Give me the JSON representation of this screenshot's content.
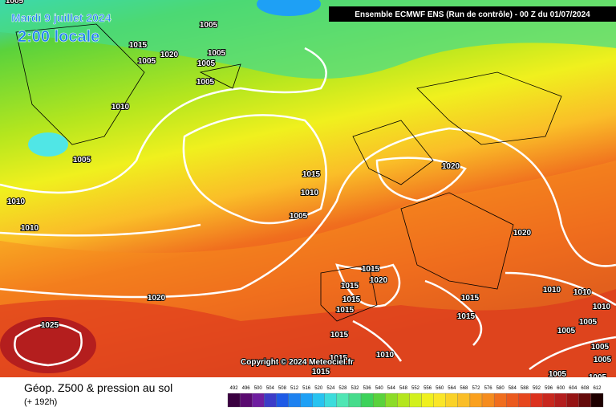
{
  "header": {
    "date": "Mardi 9 juillet 2024",
    "time": "2:00 locale",
    "model": "Ensemble ECMWF ENS  (Run de contrôle)  - 00 Z du 01/07/2024"
  },
  "copyright": "Copyright © 2024 Meteociel.fr",
  "footer": {
    "title": "Géop. Z500 & pression au sol",
    "lead": "(+ 192h)"
  },
  "isobar_labels": [
    "1005",
    "1005",
    "1015",
    "1020",
    "1005",
    "1005",
    "1005",
    "1005",
    "1010",
    "1005",
    "1015",
    "1010",
    "1005",
    "1010",
    "1010",
    "1020",
    "1020",
    "1015",
    "1020",
    "1015",
    "1015",
    "1015",
    "1020",
    "1025",
    "1015",
    "1015",
    "1015",
    "1010",
    "1010",
    "1010",
    "1005",
    "1005",
    "1005",
    "1005",
    "1010",
    "1015",
    "1015",
    "1005",
    "1005"
  ],
  "scale": {
    "labels": [
      492,
      496,
      500,
      504,
      508,
      512,
      516,
      520,
      524,
      528,
      532,
      536,
      540,
      544,
      548,
      552,
      556,
      560,
      564,
      568,
      572,
      576,
      580,
      584,
      588,
      592,
      596,
      600,
      604,
      608,
      612
    ],
    "colors": [
      "#3a0040",
      "#5a0a70",
      "#6f1ea0",
      "#3c3cc8",
      "#1e5ae6",
      "#1e82f0",
      "#1ea0f5",
      "#28c3f0",
      "#3cdcdc",
      "#50e6b4",
      "#46dc8c",
      "#3cd25a",
      "#5ad23c",
      "#8cdc28",
      "#b4e61e",
      "#d2f01e",
      "#f0f01e",
      "#fae628",
      "#fad228",
      "#fabe28",
      "#faa01e",
      "#f58c1e",
      "#f06e1e",
      "#eb5a1e",
      "#e6461e",
      "#dc321e",
      "#c8281e",
      "#b41e1e",
      "#961414",
      "#640a0a",
      "#1e0000"
    ]
  }
}
